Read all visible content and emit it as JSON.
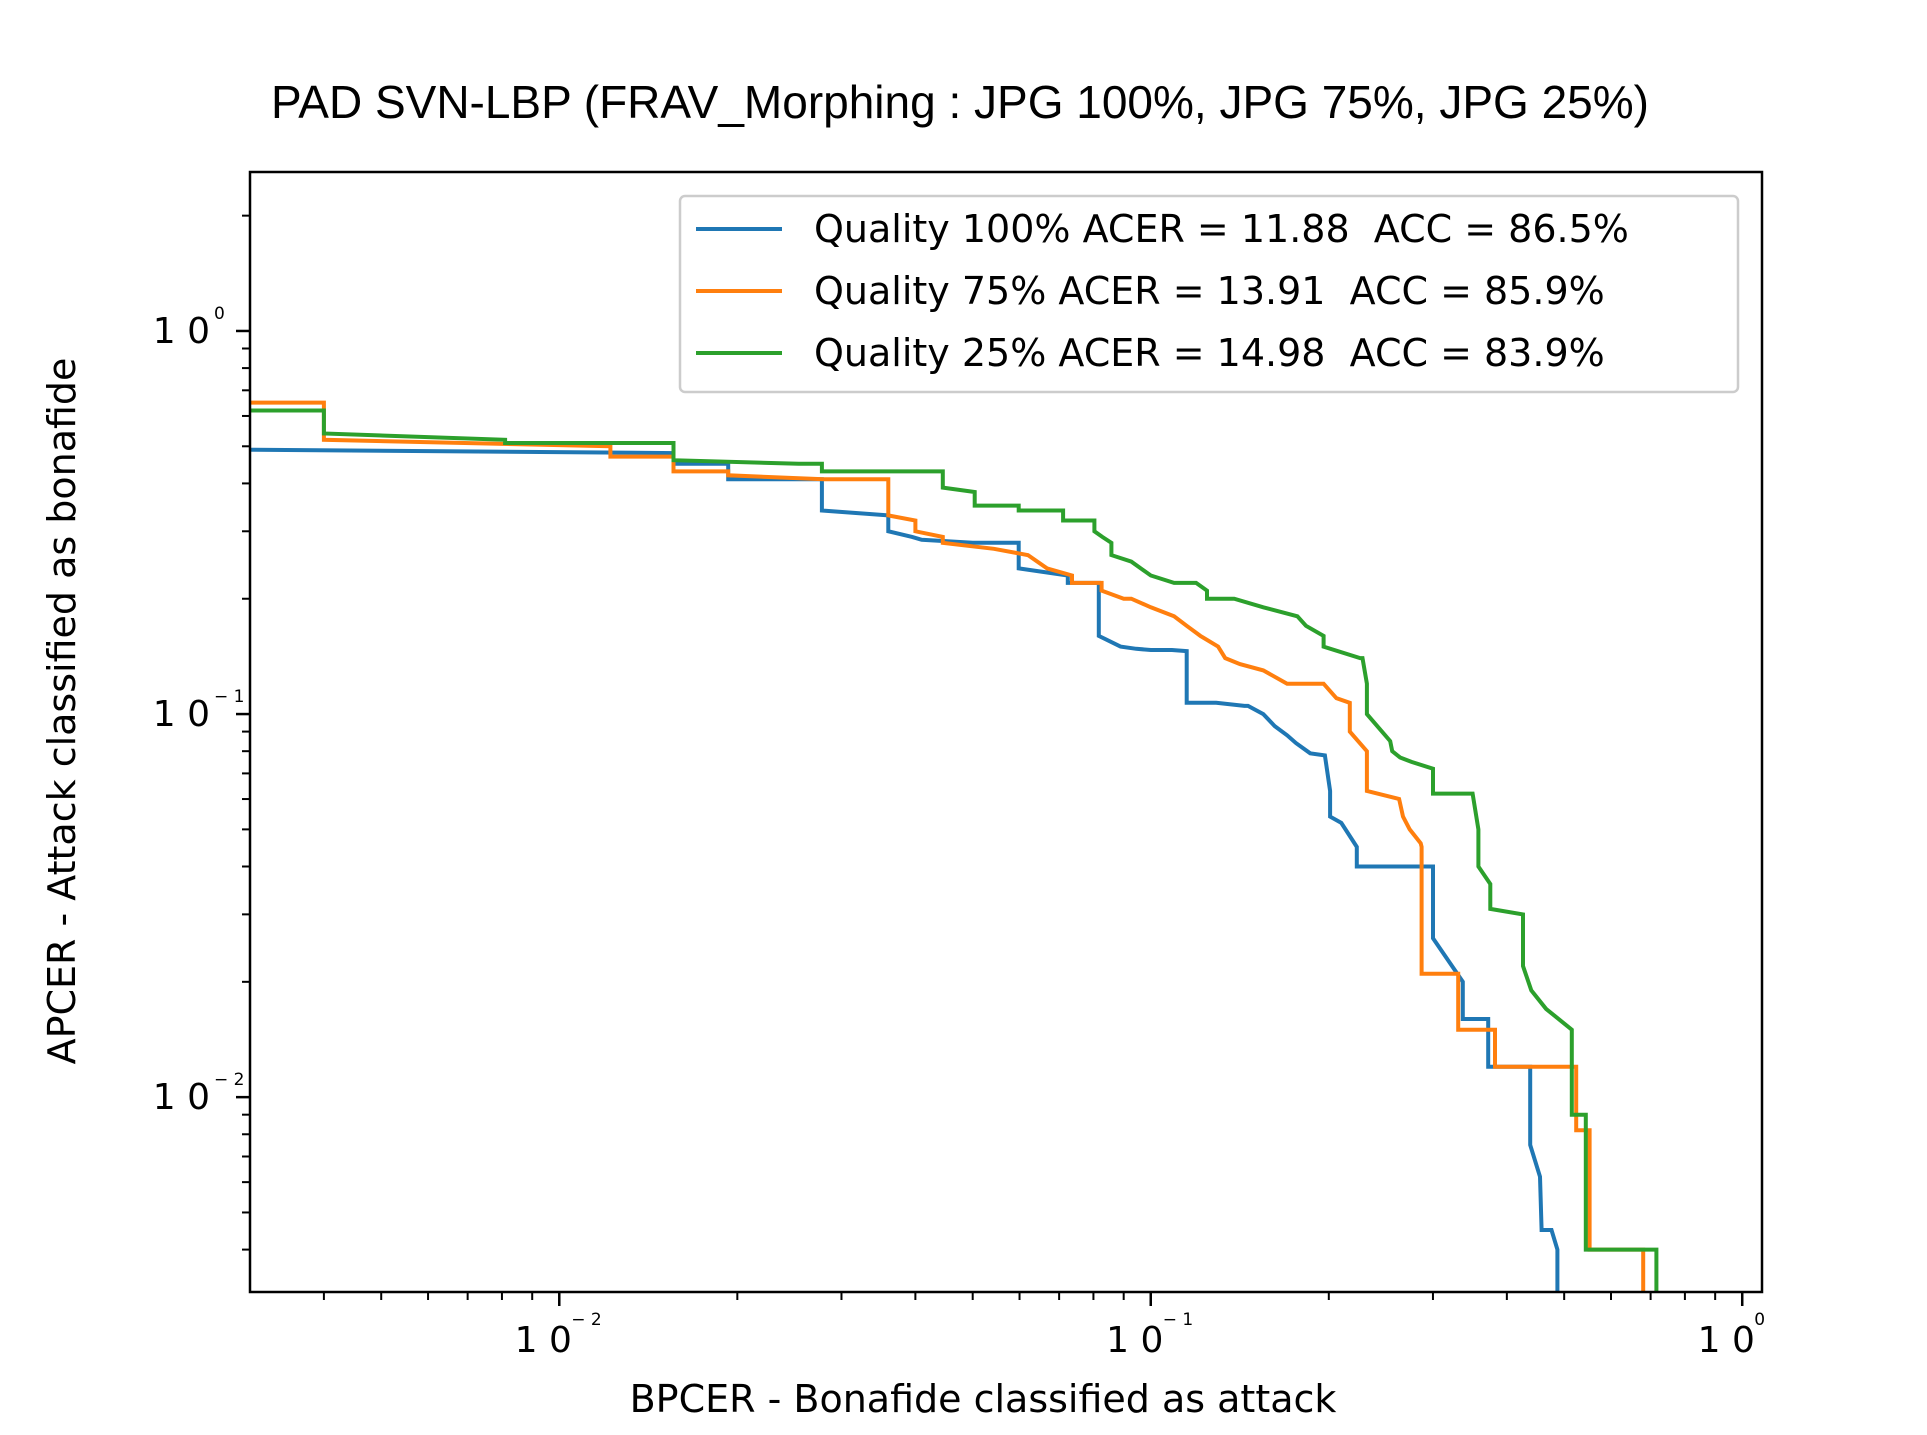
{
  "chart_data": {
    "type": "line",
    "title": "PAD SVN-LBP (FRAV_Morphing : JPG 100%,  JPG 75%, JPG 25%)",
    "xlabel": "BPCER - Bonafide classified as attack",
    "ylabel": "APCER - Attack classified as bonafide",
    "xscale": "log",
    "yscale": "log",
    "xlim": [
      0.003,
      1.08
    ],
    "ylim": [
      0.0031,
      2.6
    ],
    "grid": false,
    "legend_position": "top-right",
    "x_ticks": [
      {
        "base": "1 0",
        "exp": "− 2",
        "value": 0.01
      },
      {
        "base": "1 0",
        "exp": "− 1",
        "value": 0.1
      },
      {
        "base": "1 0",
        "exp": "0",
        "value": 1
      }
    ],
    "y_ticks": [
      {
        "base": "1 0",
        "exp": "− 2",
        "value": 0.01
      },
      {
        "base": "1 0",
        "exp": "− 1",
        "value": 0.1
      },
      {
        "base": "1 0",
        "exp": "0",
        "value": 1
      }
    ],
    "series": [
      {
        "name": "Quality 100% ACER = 11.88  ACC = 86.5%",
        "color": "#1f77b4",
        "x": [
          0.003,
          0.0156,
          0.0156,
          0.0193,
          0.0193,
          0.0278,
          0.0278,
          0.036,
          0.036,
          0.0395,
          0.041,
          0.05,
          0.0598,
          0.0598,
          0.0724,
          0.0724,
          0.0817,
          0.0817,
          0.0889,
          0.0945,
          0.1,
          0.1086,
          0.115,
          0.115,
          0.129,
          0.144,
          0.146,
          0.155,
          0.162,
          0.17,
          0.176,
          0.186,
          0.197,
          0.201,
          0.201,
          0.21,
          0.223,
          0.223,
          0.263,
          0.3,
          0.3,
          0.3,
          0.337,
          0.337,
          0.372,
          0.372,
          0.438,
          0.438,
          0.455,
          0.458,
          0.476,
          0.487,
          0.487
        ],
        "y": [
          0.49,
          0.48,
          0.45,
          0.45,
          0.41,
          0.41,
          0.34,
          0.33,
          0.3,
          0.29,
          0.285,
          0.28,
          0.28,
          0.24,
          0.23,
          0.22,
          0.22,
          0.16,
          0.15,
          0.148,
          0.147,
          0.147,
          0.146,
          0.107,
          0.107,
          0.105,
          0.105,
          0.1,
          0.093,
          0.088,
          0.084,
          0.079,
          0.078,
          0.063,
          0.054,
          0.052,
          0.045,
          0.04,
          0.04,
          0.04,
          0.032,
          0.026,
          0.02,
          0.016,
          0.016,
          0.012,
          0.012,
          0.0075,
          0.0062,
          0.0045,
          0.0045,
          0.004,
          0.0031
        ]
      },
      {
        "name": "Quality 75% ACER = 13.91  ACC = 85.9%",
        "color": "#ff7f0e",
        "x": [
          0.003,
          0.004,
          0.004,
          0.0122,
          0.0122,
          0.0156,
          0.0156,
          0.0193,
          0.0193,
          0.028,
          0.036,
          0.036,
          0.04,
          0.04,
          0.0445,
          0.0445,
          0.0543,
          0.062,
          0.0668,
          0.0736,
          0.0736,
          0.0803,
          0.0826,
          0.0826,
          0.09,
          0.0927,
          0.1,
          0.1095,
          0.115,
          0.1213,
          0.13,
          0.1336,
          0.1415,
          0.155,
          0.17,
          0.186,
          0.196,
          0.206,
          0.217,
          0.217,
          0.232,
          0.232,
          0.263,
          0.267,
          0.274,
          0.286,
          0.287,
          0.287,
          0.287,
          0.331,
          0.331,
          0.382,
          0.382,
          0.524,
          0.524,
          0.552,
          0.552,
          0.68,
          0.68
        ],
        "y": [
          0.65,
          0.65,
          0.52,
          0.5,
          0.47,
          0.47,
          0.43,
          0.43,
          0.42,
          0.41,
          0.41,
          0.33,
          0.32,
          0.3,
          0.29,
          0.28,
          0.27,
          0.26,
          0.24,
          0.23,
          0.22,
          0.22,
          0.22,
          0.21,
          0.2,
          0.2,
          0.19,
          0.18,
          0.17,
          0.16,
          0.15,
          0.14,
          0.135,
          0.13,
          0.12,
          0.12,
          0.12,
          0.11,
          0.107,
          0.09,
          0.08,
          0.063,
          0.06,
          0.054,
          0.05,
          0.046,
          0.045,
          0.035,
          0.021,
          0.021,
          0.015,
          0.015,
          0.012,
          0.012,
          0.0082,
          0.0082,
          0.004,
          0.004,
          0.0031
        ]
      },
      {
        "name": "Quality 25% ACER = 14.98  ACC = 83.9%",
        "color": "#2ca02c",
        "x": [
          0.003,
          0.004,
          0.004,
          0.0081,
          0.0081,
          0.0156,
          0.0156,
          0.0254,
          0.0278,
          0.0278,
          0.0445,
          0.0445,
          0.0504,
          0.0504,
          0.0598,
          0.0598,
          0.0711,
          0.0711,
          0.0803,
          0.0803,
          0.0828,
          0.0858,
          0.0858,
          0.0927,
          0.1,
          0.1095,
          0.1193,
          0.1245,
          0.1245,
          0.1384,
          0.155,
          0.155,
          0.177,
          0.183,
          0.196,
          0.196,
          0.226,
          0.228,
          0.232,
          0.232,
          0.254,
          0.256,
          0.264,
          0.276,
          0.3,
          0.3,
          0.35,
          0.358,
          0.358,
          0.375,
          0.375,
          0.426,
          0.426,
          0.44,
          0.466,
          0.515,
          0.515,
          0.544,
          0.544,
          0.716,
          0.716
        ],
        "y": [
          0.62,
          0.62,
          0.54,
          0.52,
          0.51,
          0.51,
          0.46,
          0.45,
          0.45,
          0.43,
          0.43,
          0.39,
          0.38,
          0.35,
          0.35,
          0.34,
          0.34,
          0.32,
          0.32,
          0.3,
          0.29,
          0.28,
          0.26,
          0.25,
          0.23,
          0.22,
          0.22,
          0.21,
          0.2,
          0.2,
          0.19,
          0.19,
          0.18,
          0.17,
          0.16,
          0.15,
          0.14,
          0.14,
          0.12,
          0.1,
          0.085,
          0.08,
          0.077,
          0.075,
          0.072,
          0.062,
          0.062,
          0.05,
          0.04,
          0.036,
          0.031,
          0.03,
          0.022,
          0.019,
          0.017,
          0.015,
          0.009,
          0.009,
          0.004,
          0.004,
          0.0031
        ]
      }
    ]
  }
}
